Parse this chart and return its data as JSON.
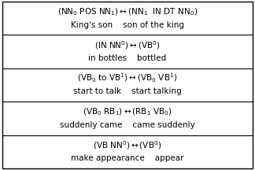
{
  "rows": [
    {
      "pattern": "(NN$_0$ POS NN$_1$)$\\leftrightarrow$(NN$_1$  IN DT NN$_0$)",
      "example": "King's son    son of the king"
    },
    {
      "pattern": "(IN NN$^0$)$\\leftrightarrow$(VB$^0$)",
      "example": "in bottles    bottled"
    },
    {
      "pattern": "(VB$_0$ to VB$^1$)$\\leftrightarrow$(VB$_0$ VB$^1$)",
      "example": "start to talk    start talking"
    },
    {
      "pattern": "(VB$_0$ RB$_1$)$\\leftrightarrow$(RB$_1$ VB$_0$)",
      "example": "suddenly came    came suddenly"
    },
    {
      "pattern": "(VB NN$^0$)$\\leftrightarrow$(VB$^0$)",
      "example": "make appearance    appear"
    }
  ],
  "bg_color": "#ffffff",
  "border_color": "#000000",
  "text_color": "#000000",
  "pattern_fontsize": 7.5,
  "example_fontsize": 7.5,
  "figsize": [
    3.24,
    2.16
  ],
  "dpi": 100
}
